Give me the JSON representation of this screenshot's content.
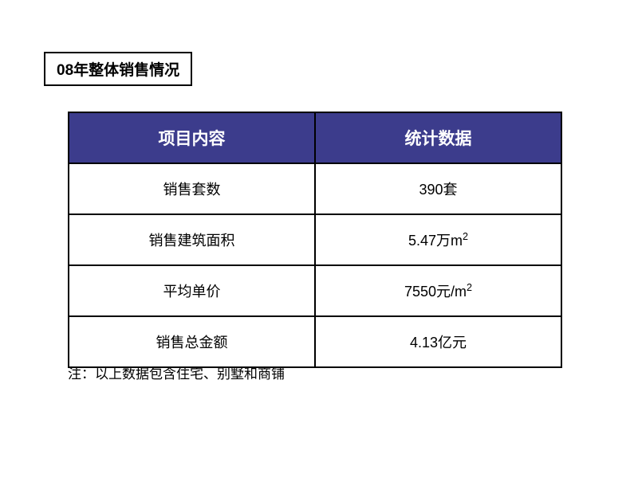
{
  "title": "08年整体销售情况",
  "table": {
    "header_bg": "#3c3c8c",
    "header_color": "#ffffff",
    "border_color": "#000000",
    "columns": [
      "项目内容",
      "统计数据"
    ],
    "rows": [
      {
        "label": "销售套数",
        "value": "390套",
        "has_sup": false
      },
      {
        "label": "销售建筑面积",
        "value": "5.47万m",
        "sup": "2",
        "has_sup": true
      },
      {
        "label": "平均单价",
        "value": "7550元/m",
        "sup": "2",
        "has_sup": true
      },
      {
        "label": "销售总金额",
        "value": "4.13亿元",
        "has_sup": false
      }
    ]
  },
  "note": "注：以上数据包含住宅、别墅和商铺"
}
